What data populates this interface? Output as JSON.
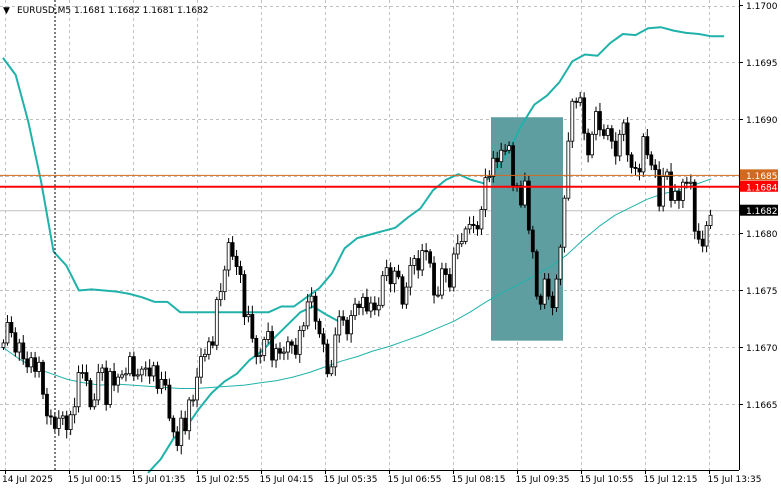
{
  "header": {
    "symbol_line": "EURUSD,M5  1.1681 1.1682 1.1681 1.1682",
    "arrow_glyph": "▼"
  },
  "colors": {
    "background": "#ffffff",
    "grid": "#c0c0c0",
    "candle": "#000000",
    "bollinger": "#20b2aa",
    "moving_average": "#20b2aa",
    "highlight_box": "#5f9ea0",
    "resistance_line": "#ff0000",
    "level_line": "#d2691e",
    "bid_line": "#c0c0c0",
    "vline": "#000000"
  },
  "chart_data": {
    "type": "candlestick",
    "title": "EURUSD,M5",
    "ylim": [
      1.1659,
      1.1701
    ],
    "y_ticks": [
      "1.1700",
      "1.1695",
      "1.1690",
      "1.1685",
      "1.1680",
      "1.1675",
      "1.1670",
      "1.1665"
    ],
    "x_ticks": [
      "14 Jul 2025",
      "15 Jul 00:15",
      "15 Jul 01:35",
      "15 Jul 02:55",
      "15 Jul 04:15",
      "15 Jul 05:35",
      "15 Jul 06:55",
      "15 Jul 08:15",
      "15 Jul 09:35",
      "15 Jul 10:55",
      "15 Jul 12:15",
      "15 Jul 13:35"
    ],
    "grid": true,
    "price_markers": [
      {
        "label": "1.1685",
        "value": 1.16851,
        "kind": "level"
      },
      {
        "label": "1.1684",
        "value": 1.16841,
        "kind": "resistance"
      },
      {
        "label": "1.1682",
        "value": 1.1682,
        "kind": "bid"
      }
    ],
    "highlight_range": {
      "from_time": "15 Jul 08:40",
      "to_time": "15 Jul 09:50",
      "low": 1.16706,
      "high": 1.16902
    },
    "vertical_marker_time": "15 Jul 00:00",
    "candles_close": [
      1.16704,
      1.16722,
      1.16713,
      1.16696,
      1.16704,
      1.1669,
      1.16683,
      1.16691,
      1.16679,
      1.16687,
      1.16659,
      1.1664,
      1.16639,
      1.16629,
      1.16638,
      1.1664,
      1.16628,
      1.16641,
      1.16648,
      1.16678,
      1.16678,
      1.16671,
      1.16648,
      1.16654,
      1.16678,
      1.16682,
      1.1665,
      1.16679,
      1.16667,
      1.16674,
      1.16676,
      1.16677,
      1.16692,
      1.16675,
      1.16676,
      1.16681,
      1.16682,
      1.16675,
      1.16684,
      1.16664,
      1.16672,
      1.16667,
      1.16638,
      1.16626,
      1.16614,
      1.16638,
      1.16627,
      1.16654,
      1.16654,
      1.16674,
      1.16692,
      1.16694,
      1.16705,
      1.16702,
      1.16742,
      1.16749,
      1.16768,
      1.16792,
      1.1678,
      1.16771,
      1.16764,
      1.16727,
      1.16729,
      1.16708,
      1.16692,
      1.16693,
      1.16707,
      1.16714,
      1.16689,
      1.16699,
      1.16695,
      1.16696,
      1.16705,
      1.16702,
      1.16694,
      1.16715,
      1.16719,
      1.1674,
      1.16745,
      1.16723,
      1.16712,
      1.16703,
      1.16677,
      1.16683,
      1.16711,
      1.16727,
      1.16724,
      1.16712,
      1.16728,
      1.16738,
      1.16735,
      1.16744,
      1.16732,
      1.16739,
      1.16733,
      1.16737,
      1.16763,
      1.1677,
      1.16756,
      1.16767,
      1.16762,
      1.16738,
      1.16753,
      1.16772,
      1.16778,
      1.16768,
      1.16785,
      1.16784,
      1.16774,
      1.16746,
      1.16746,
      1.16769,
      1.16764,
      1.16753,
      1.16782,
      1.16791,
      1.16793,
      1.16804,
      1.16808,
      1.16807,
      1.16804,
      1.16821,
      1.16849,
      1.1685,
      1.16866,
      1.16863,
      1.16873,
      1.16873,
      1.16877,
      1.16841,
      1.16842,
      1.16825,
      1.16846,
      1.16803,
      1.16784,
      1.16745,
      1.16738,
      1.1676,
      1.16745,
      1.16735,
      1.1676,
      1.16788,
      1.16831,
      1.16881,
      1.16916,
      1.16915,
      1.16919,
      1.16888,
      1.16869,
      1.16887,
      1.16907,
      1.16891,
      1.16886,
      1.16892,
      1.16881,
      1.16868,
      1.16887,
      1.16897,
      1.16869,
      1.16858,
      1.16857,
      1.16854,
      1.16885,
      1.16869,
      1.1686,
      1.16856,
      1.16824,
      1.1685,
      1.16854,
      1.16829,
      1.16837,
      1.16829,
      1.16845,
      1.16844,
      1.16845,
      1.16802,
      1.16795,
      1.16789,
      1.16807,
      1.16816
    ],
    "series": [
      {
        "name": "Bollinger upper",
        "values": [
          1.16954,
          1.16939,
          1.16898,
          1.16846,
          1.16784,
          1.16772,
          1.1675,
          1.16751,
          1.1675,
          1.16749,
          1.16747,
          1.16744,
          1.1674,
          1.1674,
          1.16731,
          1.16731,
          1.16731,
          1.16731,
          1.16731,
          1.16731,
          1.16731,
          1.16731,
          1.16736,
          1.16736,
          1.16744,
          1.16752,
          1.16765,
          1.16787,
          1.16796,
          1.16799,
          1.16802,
          1.16805,
          1.16814,
          1.16822,
          1.16838,
          1.16847,
          1.16852,
          1.16847,
          1.16844,
          1.16856,
          1.16873,
          1.16895,
          1.16913,
          1.16921,
          1.16933,
          1.16951,
          1.16957,
          1.16956,
          1.16967,
          1.16975,
          1.16974,
          1.1698,
          1.16981,
          1.16978,
          1.16976,
          1.16975,
          1.16973,
          1.16973
        ]
      },
      {
        "name": "Bollinger lower",
        "values": [
          1.1659,
          1.16602,
          1.1662,
          1.1663,
          1.16646,
          1.1666,
          1.1667,
          1.16677,
          1.16689,
          1.16697,
          1.16709,
          1.1672,
          1.16731,
          1.16736,
          1.16729,
          1.16723
        ]
      },
      {
        "name": "Moving average",
        "values": [
          1.167,
          1.1669,
          1.16682,
          1.16677,
          1.16672,
          1.16669,
          1.16667,
          1.16668,
          1.16667,
          1.16666,
          1.16665,
          1.16664,
          1.16664,
          1.16665,
          1.16666,
          1.16667,
          1.16669,
          1.16671,
          1.16674,
          1.16678,
          1.16683,
          1.16688,
          1.16692,
          1.16697,
          1.16701,
          1.16706,
          1.16711,
          1.16717,
          1.16723,
          1.16731,
          1.1674,
          1.16748,
          1.16755,
          1.16763,
          1.16771,
          1.16781,
          1.16794,
          1.16806,
          1.16816,
          1.16823,
          1.1683,
          1.16835,
          1.16838,
          1.16843,
          1.16848
        ]
      }
    ]
  }
}
